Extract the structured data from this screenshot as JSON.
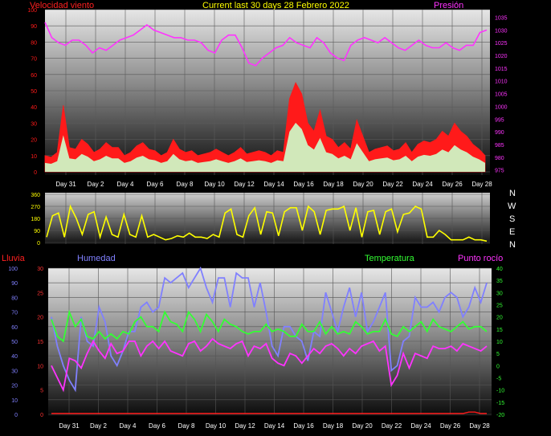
{
  "header": {
    "title": "Current last 30 days 28 Febrero 2022",
    "wind_label": "Velocidad viento",
    "pressure_label": "Presión",
    "rain_label": "Lluvia",
    "humidity_label": "Humedad",
    "temperature_label": "Temperatura",
    "dewpoint_label": "Punto rocío",
    "compass": [
      "N",
      "W",
      "S",
      "E",
      "N"
    ]
  },
  "colors": {
    "wind_speed": "#ff1a1a",
    "wind_avg": "#ccffcc",
    "pressure": "#ff33ff",
    "direction": "#ffff00",
    "humidity": "#8080ff",
    "temperature": "#33ff33",
    "dewpoint": "#ff33ff",
    "rain": "#ff1a1a"
  },
  "chart_data": [
    {
      "type": "line",
      "title": "Current last 30 days 28 Febrero 2022",
      "x_tick_labels": [
        "Day 31",
        "Day 2",
        "Day 4",
        "Day 6",
        "Day 8",
        "Day 10",
        "Day 12",
        "Day 14",
        "Day 16",
        "Day 18",
        "Day 20",
        "Day 22",
        "Day 24",
        "Day 26",
        "Day 28"
      ],
      "y_left": {
        "label": "Velocidad viento",
        "range": [
          0,
          100
        ],
        "ticks": [
          0,
          10,
          20,
          30,
          40,
          50,
          60,
          70,
          80,
          90,
          100
        ]
      },
      "y_right": {
        "label": "Presión",
        "range": [
          973,
          1038
        ],
        "ticks": [
          975,
          980,
          985,
          990,
          995,
          1000,
          1005,
          1010,
          1015,
          1020,
          1025,
          1030,
          1035
        ]
      },
      "grid": true,
      "series": [
        {
          "name": "Velocidad viento",
          "axis": "left",
          "values": [
            10,
            9,
            12,
            41,
            15,
            14,
            20,
            17,
            12,
            14,
            18,
            15,
            15,
            10,
            12,
            16,
            18,
            14,
            13,
            10,
            12,
            20,
            14,
            12,
            13,
            10,
            11,
            12,
            14,
            12,
            10,
            12,
            15,
            11,
            12,
            13,
            12,
            10,
            13,
            12,
            45,
            55,
            48,
            30,
            25,
            38,
            22,
            20,
            15,
            18,
            14,
            32,
            22,
            12,
            14,
            15,
            16,
            13,
            14,
            18,
            12,
            17,
            19,
            18,
            20,
            25,
            22,
            30,
            25,
            22,
            17,
            14,
            10
          ]
        },
        {
          "name": "Presión",
          "axis": "right",
          "values": [
            1033,
            1027,
            1025,
            1024,
            1026,
            1026,
            1024,
            1021,
            1023,
            1022,
            1024,
            1026,
            1027,
            1028,
            1030,
            1032,
            1030,
            1029,
            1028,
            1027,
            1027,
            1026,
            1026,
            1025,
            1022,
            1021,
            1026,
            1028,
            1028,
            1023,
            1017,
            1016,
            1019,
            1021,
            1023,
            1024,
            1027,
            1025,
            1024,
            1023,
            1027,
            1025,
            1021,
            1019,
            1018,
            1024,
            1026,
            1027,
            1026,
            1025,
            1027,
            1025,
            1023,
            1022,
            1024,
            1026,
            1024,
            1023,
            1023,
            1025,
            1023,
            1022,
            1024,
            1024,
            1029,
            1030
          ]
        }
      ]
    },
    {
      "type": "line",
      "y_left": {
        "label": "",
        "range": [
          0,
          360
        ],
        "ticks": [
          0,
          90,
          180,
          270,
          360
        ]
      },
      "y_right_labels": [
        "N",
        "W",
        "S",
        "E",
        "N"
      ],
      "grid": true,
      "series": [
        {
          "name": "",
          "values": [
            40,
            200,
            220,
            40,
            270,
            180,
            60,
            210,
            230,
            40,
            190,
            60,
            40,
            210,
            60,
            40,
            200,
            40,
            60,
            40,
            20,
            30,
            50,
            40,
            70,
            40,
            40,
            30,
            60,
            40,
            220,
            250,
            60,
            40,
            200,
            260,
            60,
            230,
            220,
            50,
            230,
            260,
            260,
            90,
            270,
            230,
            60,
            240,
            250,
            250,
            270,
            90,
            260,
            40,
            230,
            240,
            60,
            230,
            250,
            80,
            210,
            220,
            270,
            250,
            40,
            40,
            90,
            60,
            20,
            20,
            20,
            40,
            20,
            20,
            10
          ]
        }
      ]
    },
    {
      "type": "line",
      "x_tick_labels": [
        "Day 31",
        "Day 2",
        "Day 4",
        "Day 6",
        "Day 8",
        "Day 10",
        "Day 12",
        "Day 14",
        "Day 16",
        "Day 18",
        "Day 20",
        "Day 22",
        "Day 24",
        "Day 26",
        "Day 28"
      ],
      "y_left_outer": {
        "label": "Lluvia",
        "range": [
          0,
          100
        ],
        "ticks": [
          0,
          10,
          20,
          30,
          40,
          50,
          60,
          70,
          80,
          90,
          100
        ]
      },
      "y_left_inner": {
        "label": "Humedad",
        "range": [
          0,
          30
        ],
        "ticks": [
          0,
          5,
          10,
          15,
          20,
          25,
          30
        ]
      },
      "y_right": {
        "label": "Temperatura",
        "range": [
          -20,
          40
        ],
        "ticks": [
          -20,
          -15,
          -10,
          -5,
          0,
          5,
          10,
          15,
          20,
          25,
          30,
          35,
          40
        ]
      },
      "grid": true,
      "series": [
        {
          "name": "Humedad",
          "axis": "inner",
          "values": [
            20,
            14,
            10,
            7,
            5,
            20,
            15,
            14,
            22,
            19,
            12,
            10,
            13,
            17,
            17,
            22,
            23,
            21,
            22,
            28,
            27,
            28,
            29,
            26,
            28,
            30,
            26,
            23,
            28,
            28,
            22,
            29,
            28,
            28,
            22,
            27,
            21,
            14,
            12,
            18,
            18,
            16,
            15,
            11,
            17,
            16,
            25,
            21,
            17,
            22,
            26,
            20,
            25,
            17,
            19,
            22,
            25,
            9,
            10,
            15,
            16,
            24,
            22,
            22,
            23,
            21,
            24,
            25,
            24,
            20,
            22,
            26,
            23,
            27
          ]
        },
        {
          "name": "Temperatura",
          "axis": "right",
          "values": [
            19,
            12,
            10,
            22,
            16,
            19,
            12,
            11,
            14,
            11,
            13,
            11,
            14,
            13,
            18,
            20,
            16,
            16,
            14,
            22,
            18,
            17,
            14,
            22,
            19,
            14,
            21,
            18,
            14,
            19,
            17,
            16,
            14,
            13,
            14,
            14,
            17,
            14,
            15,
            14,
            12,
            12,
            17,
            14,
            14,
            18,
            13,
            16,
            13,
            14,
            13,
            18,
            16,
            13,
            14,
            14,
            19,
            13,
            12,
            16,
            14,
            16,
            18,
            14,
            19,
            16,
            15,
            14,
            16,
            18,
            15,
            16,
            16,
            14
          ]
        },
        {
          "name": "Punto rocío",
          "axis": "right",
          "values": [
            0,
            -5,
            -10,
            3,
            2,
            -1,
            5,
            10,
            6,
            3,
            9,
            5,
            6,
            10,
            10,
            4,
            8,
            10,
            7,
            10,
            6,
            5,
            4,
            9,
            10,
            6,
            8,
            11,
            9,
            8,
            7,
            9,
            10,
            4,
            8,
            7,
            9,
            3,
            1,
            0,
            5,
            4,
            1,
            4,
            7,
            5,
            8,
            9,
            7,
            4,
            7,
            5,
            8,
            9,
            10,
            6,
            8,
            -8,
            -4,
            5,
            -1,
            5,
            4,
            3,
            8,
            7,
            7,
            8,
            6,
            9,
            8,
            7,
            6,
            8
          ]
        },
        {
          "name": "Lluvia",
          "axis": "outer",
          "values": [
            0,
            0,
            0,
            0,
            0,
            0,
            0,
            0,
            0,
            0,
            0,
            0,
            0,
            0,
            0,
            0,
            0,
            0,
            0,
            0,
            0,
            0,
            0,
            0,
            0,
            0,
            0,
            0,
            0,
            0,
            0,
            0,
            0,
            0,
            0,
            0,
            0,
            0,
            0,
            0,
            0,
            0,
            0,
            0,
            0,
            0,
            0,
            0,
            0,
            0,
            0,
            0,
            0,
            0,
            0,
            0,
            0,
            0,
            0,
            0,
            0,
            0,
            0,
            0,
            0,
            0,
            0,
            0,
            0,
            0,
            1,
            1,
            0,
            0
          ]
        }
      ]
    }
  ]
}
